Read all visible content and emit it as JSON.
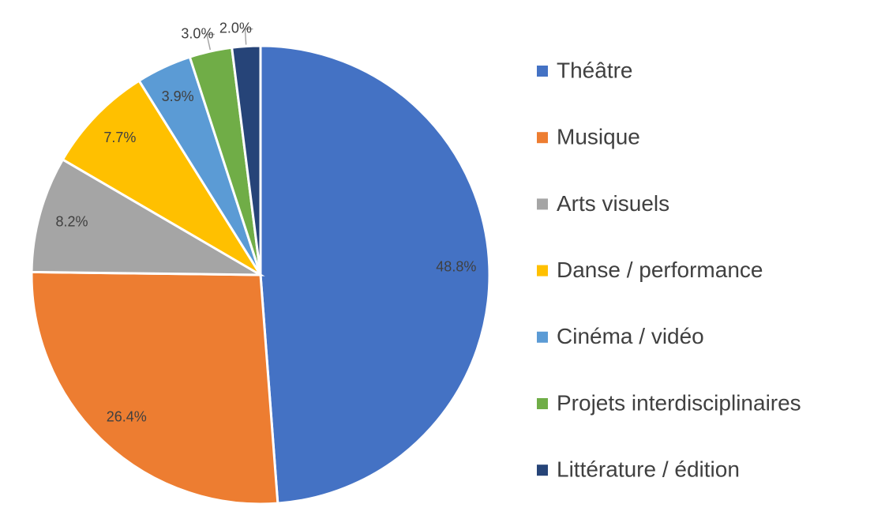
{
  "chart_data": {
    "type": "pie",
    "categories": [
      "Théâtre",
      "Musique",
      "Arts visuels",
      "Danse / performance",
      "Cinéma / vidéo",
      "Projets interdisciplinaires",
      "Littérature / édition"
    ],
    "values": [
      48.8,
      26.4,
      8.2,
      7.7,
      3.9,
      3.0,
      2.0
    ],
    "value_labels": [
      "48.8%",
      "26.4%",
      "8.2%",
      "7.7%",
      "3.9%",
      "3.0%",
      "2.0%"
    ],
    "colors": [
      "#4472c4",
      "#ed7d31",
      "#a5a5a5",
      "#ffc000",
      "#5b9bd5",
      "#70ad47",
      "#264478"
    ],
    "legend": "right"
  }
}
